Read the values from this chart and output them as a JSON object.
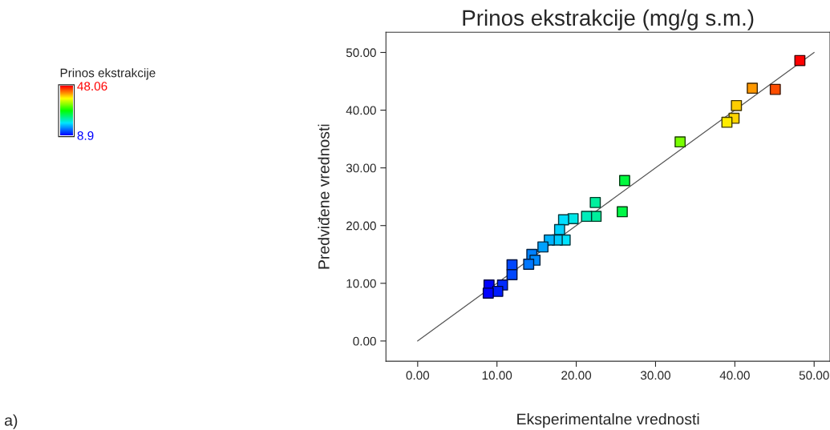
{
  "chart_data": {
    "type": "scatter",
    "title": "Prinos ekstrakcije (mg/g s.m.)",
    "xlabel": "Eksperimentalne vrednosti",
    "ylabel": "Predviđene vrednosti",
    "clabel": "Prinos ekstrakcije",
    "clim": [
      8.9,
      48.06
    ],
    "cticks": [
      8.9,
      48.06
    ],
    "xlim": [
      -4,
      52
    ],
    "ylim": [
      -3.5,
      53.5
    ],
    "xticks": [
      {
        "value": 0,
        "label": "0.00"
      },
      {
        "value": 10,
        "label": "10.00"
      },
      {
        "value": 20,
        "label": "20.00"
      },
      {
        "value": 30,
        "label": "30.00"
      },
      {
        "value": 40,
        "label": "40.00"
      },
      {
        "value": 50,
        "label": "50.00"
      }
    ],
    "yticks": [
      {
        "value": 0,
        "label": "0.00"
      },
      {
        "value": 10,
        "label": "10.00"
      },
      {
        "value": 20,
        "label": "20.00"
      },
      {
        "value": 30,
        "label": "30.00"
      },
      {
        "value": 40,
        "label": "40.00"
      },
      {
        "value": 50,
        "label": "50.00"
      }
    ],
    "grid": false,
    "annotations": [
      "a)"
    ],
    "series": [
      {
        "marker": "square",
        "colors": [
          "#ff0000",
          "#ff9900",
          "#ff4d00",
          "#ffcd00",
          "#ffd500",
          "#ffec00",
          "#78ff00",
          "#00f93e",
          "#00f846",
          "#00ef9e",
          "#00ef9c",
          "#00ecbb",
          "#00e7e7",
          "#00deff",
          "#00d2ff",
          "#00e3ff",
          "#00ccff",
          "#00b4ff",
          "#00a1ff",
          "#0081ff",
          "#008aff",
          "#0077ff",
          "#0046ff",
          "#0046ff",
          "#002aff",
          "#0002ff",
          "#001cff",
          "#0000ff"
        ],
        "x": [
          48.2,
          42.2,
          45.1,
          40.2,
          39.9,
          39.0,
          33.1,
          26.1,
          25.8,
          22.4,
          22.5,
          21.3,
          19.6,
          18.4,
          17.9,
          18.6,
          17.6,
          16.6,
          15.8,
          14.4,
          14.8,
          14.0,
          11.9,
          11.9,
          10.7,
          9.0,
          10.1,
          8.9
        ],
        "values": [
          48.6,
          43.8,
          43.6,
          40.8,
          38.6,
          37.9,
          34.5,
          27.8,
          22.4,
          24.0,
          21.6,
          21.6,
          21.2,
          21.0,
          19.3,
          17.5,
          17.5,
          17.5,
          16.3,
          15.0,
          14.0,
          13.3,
          13.2,
          11.5,
          9.7,
          9.7,
          8.6,
          8.3
        ],
        "cvalues": [
          48.06,
          42.2,
          45.1,
          40.2,
          39.9,
          39.0,
          33.1,
          26.1,
          25.8,
          22.4,
          22.5,
          21.3,
          19.6,
          18.4,
          17.9,
          18.6,
          17.6,
          16.6,
          15.8,
          14.4,
          14.8,
          14.0,
          11.9,
          11.9,
          10.7,
          9.0,
          10.1,
          8.9
        ]
      },
      {
        "type": "line",
        "color": "#555555",
        "x": [
          0,
          50
        ],
        "values": [
          0,
          50
        ]
      }
    ]
  }
}
